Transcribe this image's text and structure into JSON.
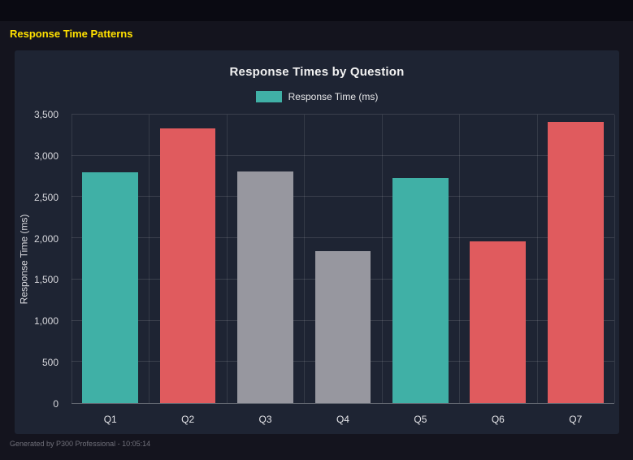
{
  "page": {
    "title": "Response Time Patterns",
    "footer": "Generated by P300 Professional - 10:05:14"
  },
  "colors": {
    "page_bg": "#14141e",
    "topbar_bg": "#0a0a12",
    "panel_bg": "#1e2433",
    "accent_yellow": "#ffe000",
    "teal": "#40b0a6",
    "red": "#e05b5e",
    "gray": "#97979f"
  },
  "chart_data": {
    "type": "bar",
    "title": "Response Times by Question",
    "legend": [
      {
        "label": "Response Time (ms)",
        "color": "#40b0a6"
      }
    ],
    "categories": [
      "Q1",
      "Q2",
      "Q3",
      "Q4",
      "Q5",
      "Q6",
      "Q7"
    ],
    "values": [
      2800,
      3330,
      2810,
      1840,
      2730,
      1960,
      3410
    ],
    "bar_colors": [
      "#40b0a6",
      "#e05b5e",
      "#97979f",
      "#97979f",
      "#40b0a6",
      "#e05b5e",
      "#e05b5e"
    ],
    "xlabel": "",
    "ylabel": "Response Time (ms)",
    "ylim": [
      0,
      3500
    ],
    "yticks": [
      0,
      500,
      1000,
      1500,
      2000,
      2500,
      3000,
      3500
    ],
    "ytick_labels": [
      "0",
      "500",
      "1,000",
      "1,500",
      "2,000",
      "2,500",
      "3,000",
      "3,500"
    ],
    "grid": true,
    "legend_position": "top"
  }
}
